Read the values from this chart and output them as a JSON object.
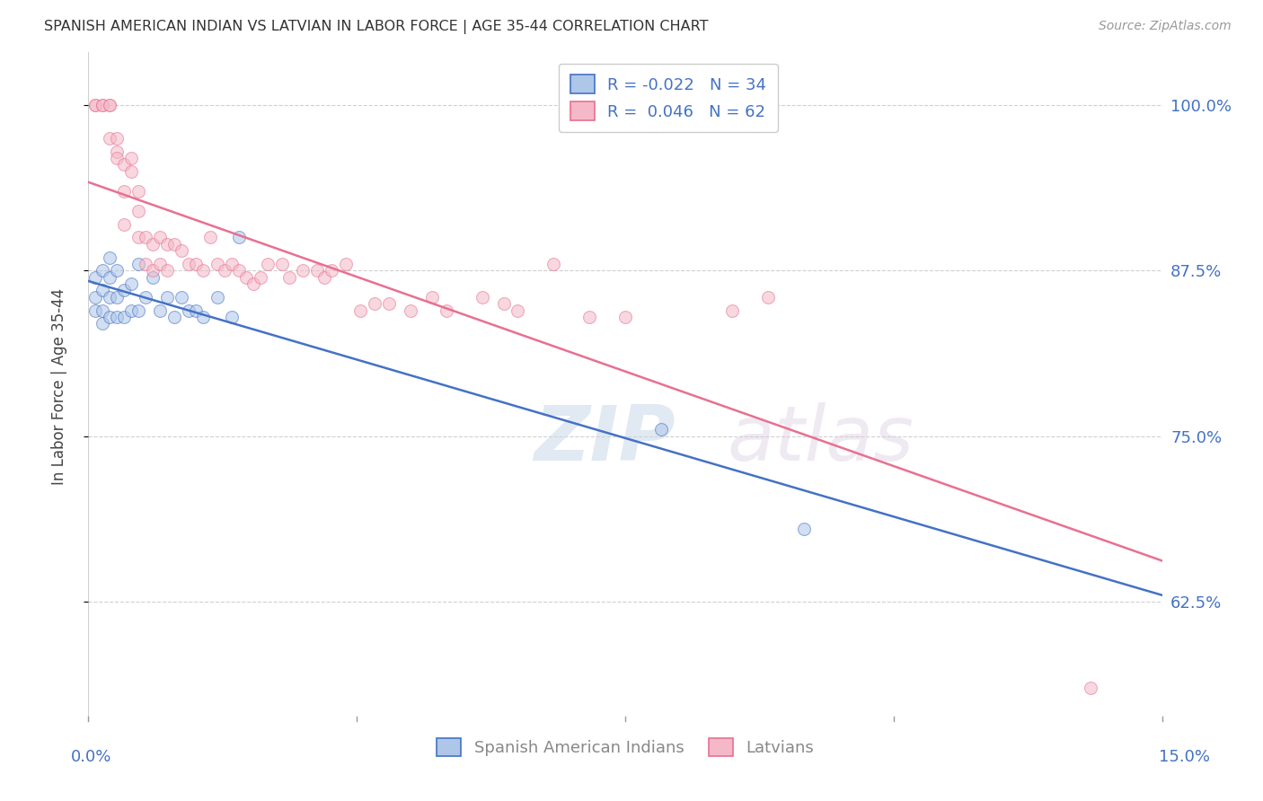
{
  "title": "SPANISH AMERICAN INDIAN VS LATVIAN IN LABOR FORCE | AGE 35-44 CORRELATION CHART",
  "source": "Source: ZipAtlas.com",
  "ylabel": "In Labor Force | Age 35-44",
  "y_ticks": [
    0.625,
    0.75,
    0.875,
    1.0
  ],
  "y_tick_labels": [
    "62.5%",
    "75.0%",
    "87.5%",
    "100.0%"
  ],
  "xlim": [
    0.0,
    0.15
  ],
  "ylim": [
    0.535,
    1.04
  ],
  "watermark_zip": "ZIP",
  "watermark_atlas": "atlas",
  "blue_r": "-0.022",
  "blue_n": "34",
  "pink_r": "0.046",
  "pink_n": "62",
  "blue_scatter_x": [
    0.001,
    0.001,
    0.001,
    0.002,
    0.002,
    0.002,
    0.002,
    0.003,
    0.003,
    0.003,
    0.003,
    0.004,
    0.004,
    0.004,
    0.005,
    0.005,
    0.006,
    0.006,
    0.007,
    0.007,
    0.008,
    0.009,
    0.01,
    0.011,
    0.012,
    0.013,
    0.014,
    0.015,
    0.016,
    0.018,
    0.02,
    0.021,
    0.08,
    0.1
  ],
  "blue_scatter_y": [
    0.845,
    0.855,
    0.87,
    0.835,
    0.845,
    0.86,
    0.875,
    0.84,
    0.855,
    0.87,
    0.885,
    0.84,
    0.855,
    0.875,
    0.84,
    0.86,
    0.845,
    0.865,
    0.845,
    0.88,
    0.855,
    0.87,
    0.845,
    0.855,
    0.84,
    0.855,
    0.845,
    0.845,
    0.84,
    0.855,
    0.84,
    0.9,
    0.755,
    0.68
  ],
  "pink_scatter_x": [
    0.001,
    0.001,
    0.002,
    0.002,
    0.003,
    0.003,
    0.003,
    0.004,
    0.004,
    0.004,
    0.005,
    0.005,
    0.005,
    0.006,
    0.006,
    0.007,
    0.007,
    0.007,
    0.008,
    0.008,
    0.009,
    0.009,
    0.01,
    0.01,
    0.011,
    0.011,
    0.012,
    0.013,
    0.014,
    0.015,
    0.016,
    0.017,
    0.018,
    0.019,
    0.02,
    0.021,
    0.022,
    0.023,
    0.024,
    0.025,
    0.027,
    0.028,
    0.03,
    0.032,
    0.033,
    0.034,
    0.036,
    0.038,
    0.04,
    0.042,
    0.045,
    0.048,
    0.05,
    0.055,
    0.058,
    0.06,
    0.065,
    0.07,
    0.075,
    0.14,
    0.09,
    0.095
  ],
  "pink_scatter_y": [
    1.0,
    1.0,
    1.0,
    1.0,
    1.0,
    1.0,
    0.975,
    0.965,
    0.96,
    0.975,
    0.935,
    0.955,
    0.91,
    0.96,
    0.95,
    0.935,
    0.92,
    0.9,
    0.9,
    0.88,
    0.895,
    0.875,
    0.9,
    0.88,
    0.895,
    0.875,
    0.895,
    0.89,
    0.88,
    0.88,
    0.875,
    0.9,
    0.88,
    0.875,
    0.88,
    0.875,
    0.87,
    0.865,
    0.87,
    0.88,
    0.88,
    0.87,
    0.875,
    0.875,
    0.87,
    0.875,
    0.88,
    0.845,
    0.85,
    0.85,
    0.845,
    0.855,
    0.845,
    0.855,
    0.85,
    0.845,
    0.88,
    0.84,
    0.84,
    0.56,
    0.845,
    0.855
  ],
  "blue_color": "#aec6e8",
  "pink_color": "#f4b8c8",
  "blue_edge_color": "#4472c4",
  "pink_edge_color": "#e87090",
  "blue_line_color": "#4472c4",
  "pink_line_color": "#e87090",
  "scatter_size": 100,
  "scatter_alpha": 0.55,
  "background_color": "#ffffff",
  "grid_color": "#d0d0d0",
  "right_tick_color": "#4472c4"
}
